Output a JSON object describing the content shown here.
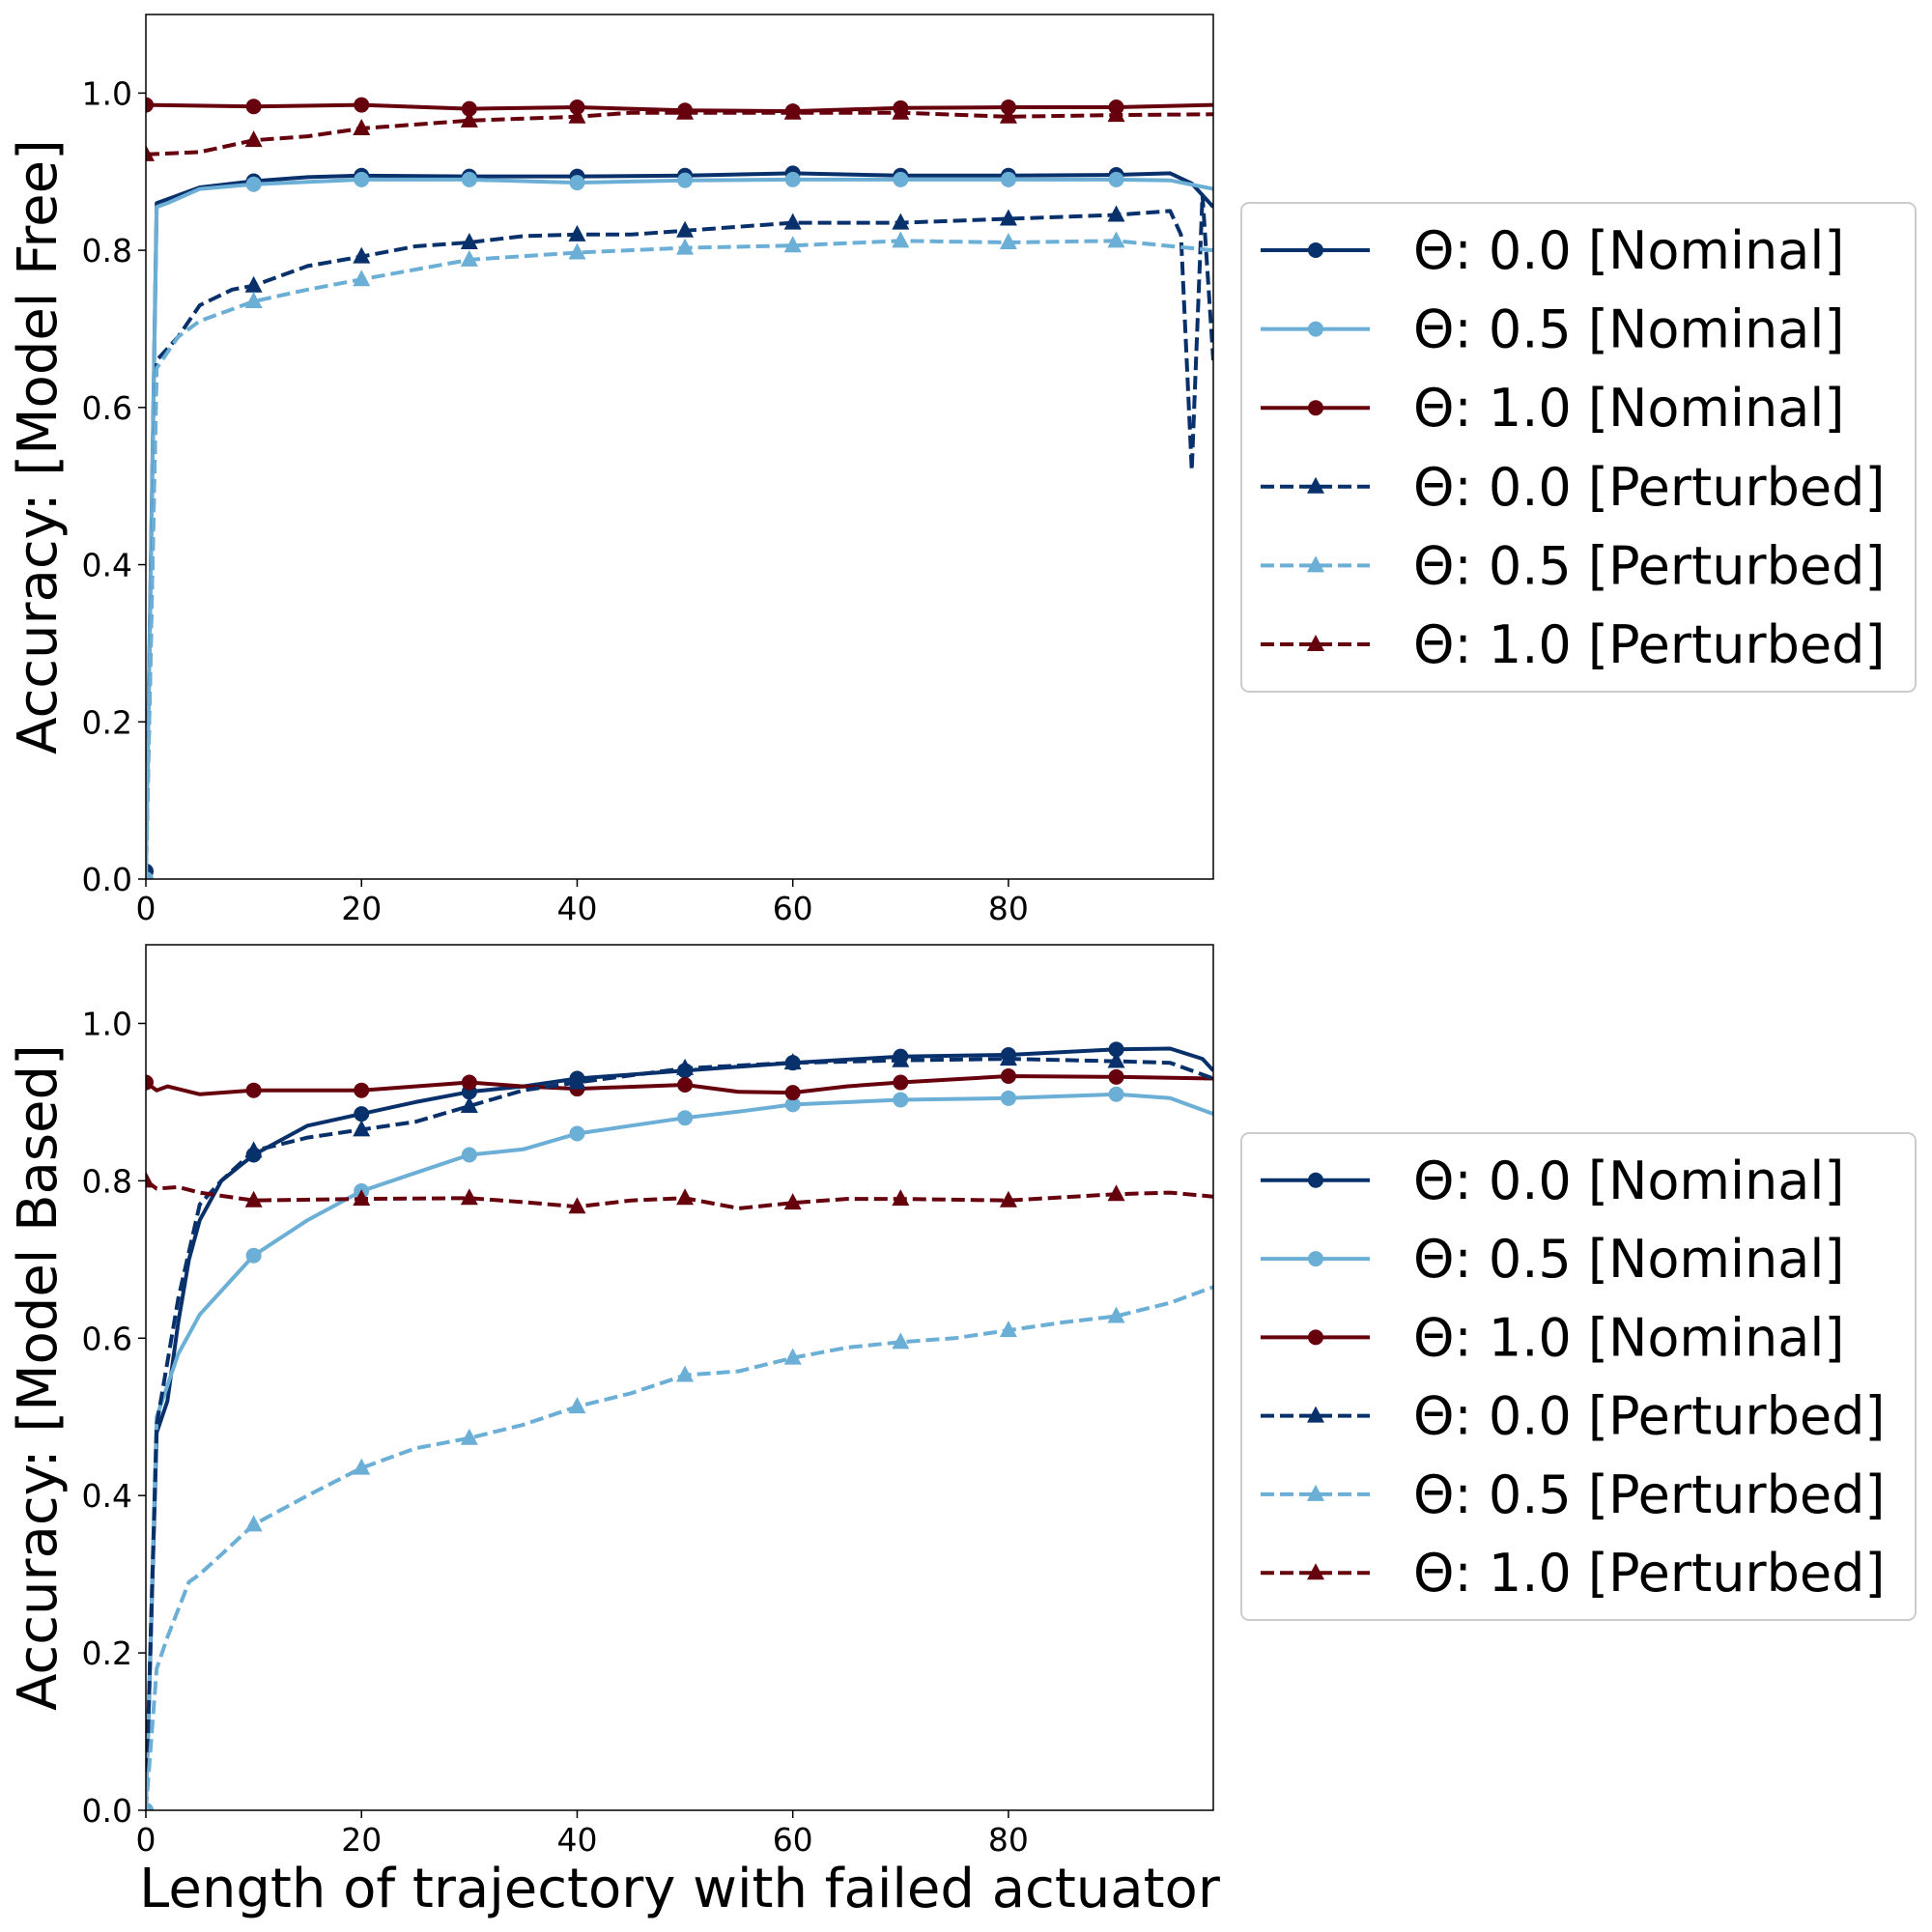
{
  "chart_data": [
    {
      "type": "line",
      "ylabel": "Accuracy: [Model Free]",
      "xlabel": "",
      "xlim": [
        0,
        99
      ],
      "ylim": [
        0,
        1.1
      ],
      "xticks": [
        0,
        20,
        40,
        60,
        80
      ],
      "yticks": [
        0.0,
        0.2,
        0.4,
        0.6,
        0.8,
        1.0
      ],
      "grid": false,
      "legend_placement": "right-outside",
      "series": [
        {
          "name": "Θ: 0.0 [Nominal]",
          "color": "#08306b",
          "style": "solid",
          "marker": "circle",
          "x": [
            0,
            1,
            2,
            5,
            10,
            15,
            20,
            30,
            40,
            50,
            60,
            70,
            80,
            90,
            95,
            97,
            99
          ],
          "y": [
            0.01,
            0.86,
            0.865,
            0.88,
            0.888,
            0.893,
            0.895,
            0.894,
            0.894,
            0.895,
            0.898,
            0.895,
            0.895,
            0.896,
            0.898,
            0.885,
            0.855
          ]
        },
        {
          "name": "Θ: 0.5 [Nominal]",
          "color": "#6baed6",
          "style": "solid",
          "marker": "circle",
          "x": [
            0,
            1,
            2,
            5,
            10,
            20,
            30,
            40,
            50,
            60,
            70,
            80,
            90,
            95,
            99
          ],
          "y": [
            0.0,
            0.855,
            0.86,
            0.878,
            0.884,
            0.89,
            0.89,
            0.886,
            0.889,
            0.89,
            0.89,
            0.89,
            0.89,
            0.889,
            0.878
          ]
        },
        {
          "name": "Θ: 1.0 [Nominal]",
          "color": "#67000d",
          "style": "solid",
          "marker": "circle",
          "x": [
            0,
            10,
            20,
            30,
            40,
            50,
            60,
            70,
            80,
            90,
            99
          ],
          "y": [
            0.985,
            0.983,
            0.985,
            0.98,
            0.982,
            0.978,
            0.977,
            0.981,
            0.982,
            0.982,
            0.985
          ]
        },
        {
          "name": "Θ: 0.0 [Perturbed]",
          "color": "#08306b",
          "style": "dashed",
          "marker": "triangle",
          "x": [
            0,
            1,
            3,
            5,
            8,
            10,
            15,
            20,
            25,
            30,
            35,
            40,
            45,
            50,
            60,
            70,
            80,
            90,
            95,
            96,
            97,
            98,
            99
          ],
          "y": [
            0.0,
            0.66,
            0.69,
            0.73,
            0.75,
            0.755,
            0.78,
            0.792,
            0.805,
            0.81,
            0.818,
            0.82,
            0.82,
            0.825,
            0.835,
            0.835,
            0.84,
            0.845,
            0.85,
            0.82,
            0.52,
            0.87,
            0.66
          ]
        },
        {
          "name": "Θ: 0.5 [Perturbed]",
          "color": "#6baed6",
          "style": "dashed",
          "marker": "triangle",
          "x": [
            0,
            1,
            3,
            5,
            10,
            15,
            20,
            30,
            40,
            50,
            60,
            70,
            80,
            90,
            99
          ],
          "y": [
            0.0,
            0.65,
            0.69,
            0.71,
            0.735,
            0.75,
            0.763,
            0.788,
            0.797,
            0.803,
            0.806,
            0.812,
            0.81,
            0.812,
            0.8
          ]
        },
        {
          "name": "Θ: 1.0 [Perturbed]",
          "color": "#67000d",
          "style": "dashed",
          "marker": "triangle",
          "x": [
            0,
            5,
            10,
            15,
            20,
            30,
            40,
            45,
            50,
            60,
            70,
            80,
            90,
            99
          ],
          "y": [
            0.922,
            0.925,
            0.94,
            0.945,
            0.955,
            0.965,
            0.97,
            0.975,
            0.975,
            0.975,
            0.975,
            0.97,
            0.972,
            0.973
          ]
        }
      ]
    },
    {
      "type": "line",
      "ylabel": "Accuracy: [Model Based]",
      "xlabel": "Length of trajectory with failed actuator",
      "xlim": [
        0,
        99
      ],
      "ylim": [
        0,
        1.1
      ],
      "xticks": [
        0,
        20,
        40,
        60,
        80
      ],
      "yticks": [
        0.0,
        0.2,
        0.4,
        0.6,
        0.8,
        1.0
      ],
      "grid": false,
      "legend_placement": "right-outside",
      "series": [
        {
          "name": "Θ: 0.0 [Nominal]",
          "color": "#08306b",
          "style": "solid",
          "marker": "circle",
          "x": [
            0,
            1,
            2,
            3,
            4,
            5,
            7,
            10,
            15,
            20,
            25,
            30,
            35,
            40,
            50,
            60,
            70,
            80,
            90,
            95,
            98,
            99
          ],
          "y": [
            0.0,
            0.48,
            0.52,
            0.62,
            0.7,
            0.75,
            0.8,
            0.833,
            0.87,
            0.885,
            0.9,
            0.913,
            0.92,
            0.93,
            0.94,
            0.95,
            0.958,
            0.96,
            0.967,
            0.968,
            0.955,
            0.94
          ]
        },
        {
          "name": "Θ: 0.5 [Nominal]",
          "color": "#6baed6",
          "style": "solid",
          "marker": "circle",
          "x": [
            0,
            1,
            3,
            5,
            7,
            10,
            15,
            20,
            25,
            30,
            35,
            40,
            45,
            50,
            55,
            60,
            70,
            80,
            90,
            95,
            99
          ],
          "y": [
            0.0,
            0.5,
            0.58,
            0.63,
            0.66,
            0.705,
            0.75,
            0.787,
            0.81,
            0.833,
            0.84,
            0.86,
            0.87,
            0.88,
            0.888,
            0.897,
            0.903,
            0.905,
            0.91,
            0.905,
            0.885
          ]
        },
        {
          "name": "Θ: 1.0 [Nominal]",
          "color": "#67000d",
          "style": "solid",
          "marker": "circle",
          "x": [
            0,
            1,
            2,
            5,
            10,
            20,
            30,
            35,
            40,
            50,
            55,
            60,
            65,
            70,
            80,
            90,
            99
          ],
          "y": [
            0.925,
            0.915,
            0.92,
            0.91,
            0.915,
            0.915,
            0.925,
            0.92,
            0.917,
            0.922,
            0.913,
            0.912,
            0.92,
            0.925,
            0.933,
            0.932,
            0.93
          ]
        },
        {
          "name": "Θ: 0.0 [Perturbed]",
          "color": "#08306b",
          "style": "dashed",
          "marker": "triangle",
          "x": [
            0,
            1,
            3,
            5,
            7,
            10,
            15,
            20,
            25,
            30,
            35,
            40,
            50,
            60,
            70,
            80,
            90,
            95,
            99
          ],
          "y": [
            0.0,
            0.49,
            0.65,
            0.77,
            0.8,
            0.838,
            0.855,
            0.865,
            0.875,
            0.895,
            0.915,
            0.925,
            0.943,
            0.95,
            0.953,
            0.955,
            0.952,
            0.95,
            0.93
          ]
        },
        {
          "name": "Θ: 0.5 [Perturbed]",
          "color": "#6baed6",
          "style": "dashed",
          "marker": "triangle",
          "x": [
            0,
            1,
            2,
            4,
            5,
            7,
            10,
            15,
            20,
            25,
            30,
            35,
            40,
            45,
            50,
            55,
            60,
            65,
            70,
            75,
            80,
            85,
            90,
            95,
            99
          ],
          "y": [
            0.0,
            0.18,
            0.22,
            0.29,
            0.3,
            0.325,
            0.363,
            0.4,
            0.435,
            0.46,
            0.473,
            0.49,
            0.513,
            0.53,
            0.553,
            0.558,
            0.575,
            0.588,
            0.595,
            0.6,
            0.61,
            0.62,
            0.628,
            0.645,
            0.665
          ]
        },
        {
          "name": "Θ: 1.0 [Perturbed]",
          "color": "#67000d",
          "style": "dashed",
          "marker": "triangle",
          "x": [
            0,
            1,
            3,
            5,
            10,
            20,
            30,
            35,
            40,
            45,
            50,
            55,
            60,
            65,
            70,
            80,
            90,
            95,
            99
          ],
          "y": [
            0.8,
            0.79,
            0.792,
            0.785,
            0.775,
            0.777,
            0.778,
            0.773,
            0.767,
            0.775,
            0.778,
            0.765,
            0.772,
            0.777,
            0.777,
            0.775,
            0.783,
            0.785,
            0.78
          ]
        }
      ]
    }
  ]
}
